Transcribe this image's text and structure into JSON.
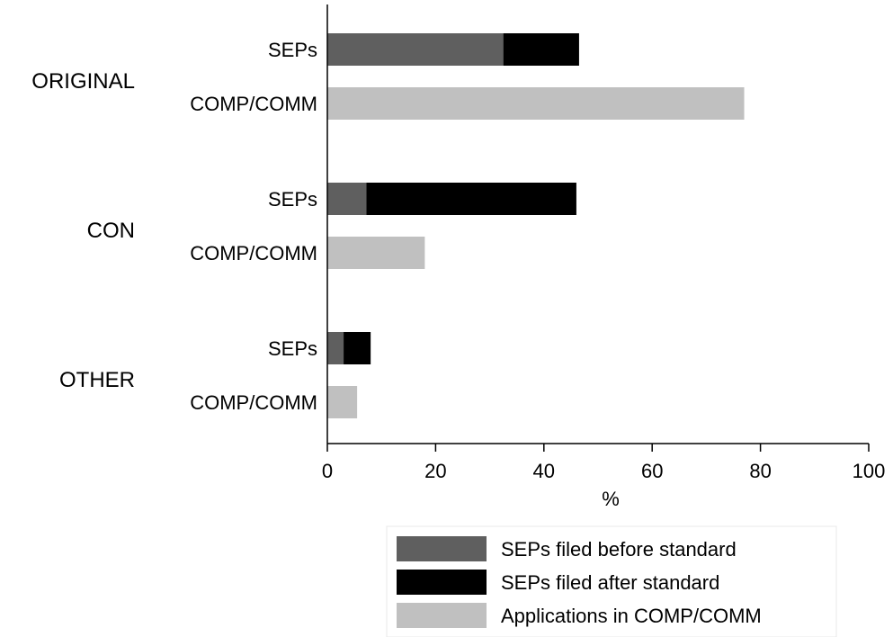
{
  "chart_data": {
    "type": "bar",
    "orientation": "horizontal",
    "stacked": true,
    "xlabel": "%",
    "xlim": [
      0,
      100
    ],
    "xticks": [
      0,
      20,
      40,
      60,
      80,
      100
    ],
    "grid": false,
    "legend_position": "bottom-right",
    "groups": [
      {
        "name": "ORIGINAL",
        "bars": [
          {
            "label": "SEPs",
            "segments": [
              {
                "series": "SEPs filed before standard",
                "value": 32.5
              },
              {
                "series": "SEPs filed after standard",
                "value": 14
              }
            ]
          },
          {
            "label": "COMP/COMM",
            "segments": [
              {
                "series": "Applications in COMP/COMM",
                "value": 77
              }
            ]
          }
        ]
      },
      {
        "name": "CON",
        "bars": [
          {
            "label": "SEPs",
            "segments": [
              {
                "series": "SEPs filed before standard",
                "value": 7.2
              },
              {
                "series": "SEPs filed after standard",
                "value": 38.8
              }
            ]
          },
          {
            "label": "COMP/COMM",
            "segments": [
              {
                "series": "Applications in COMP/COMM",
                "value": 18
              }
            ]
          }
        ]
      },
      {
        "name": "OTHER",
        "bars": [
          {
            "label": "SEPs",
            "segments": [
              {
                "series": "SEPs filed before standard",
                "value": 3
              },
              {
                "series": "SEPs filed after standard",
                "value": 5
              }
            ]
          },
          {
            "label": "COMP/COMM",
            "segments": [
              {
                "series": "Applications in COMP/COMM",
                "value": 5.5
              }
            ]
          }
        ]
      }
    ],
    "series": [
      {
        "name": "SEPs filed before standard",
        "color": "#5f5f5f"
      },
      {
        "name": "SEPs filed after standard",
        "color": "#000000"
      },
      {
        "name": "Applications in COMP/COMM",
        "color": "#c0c0c0"
      }
    ]
  }
}
